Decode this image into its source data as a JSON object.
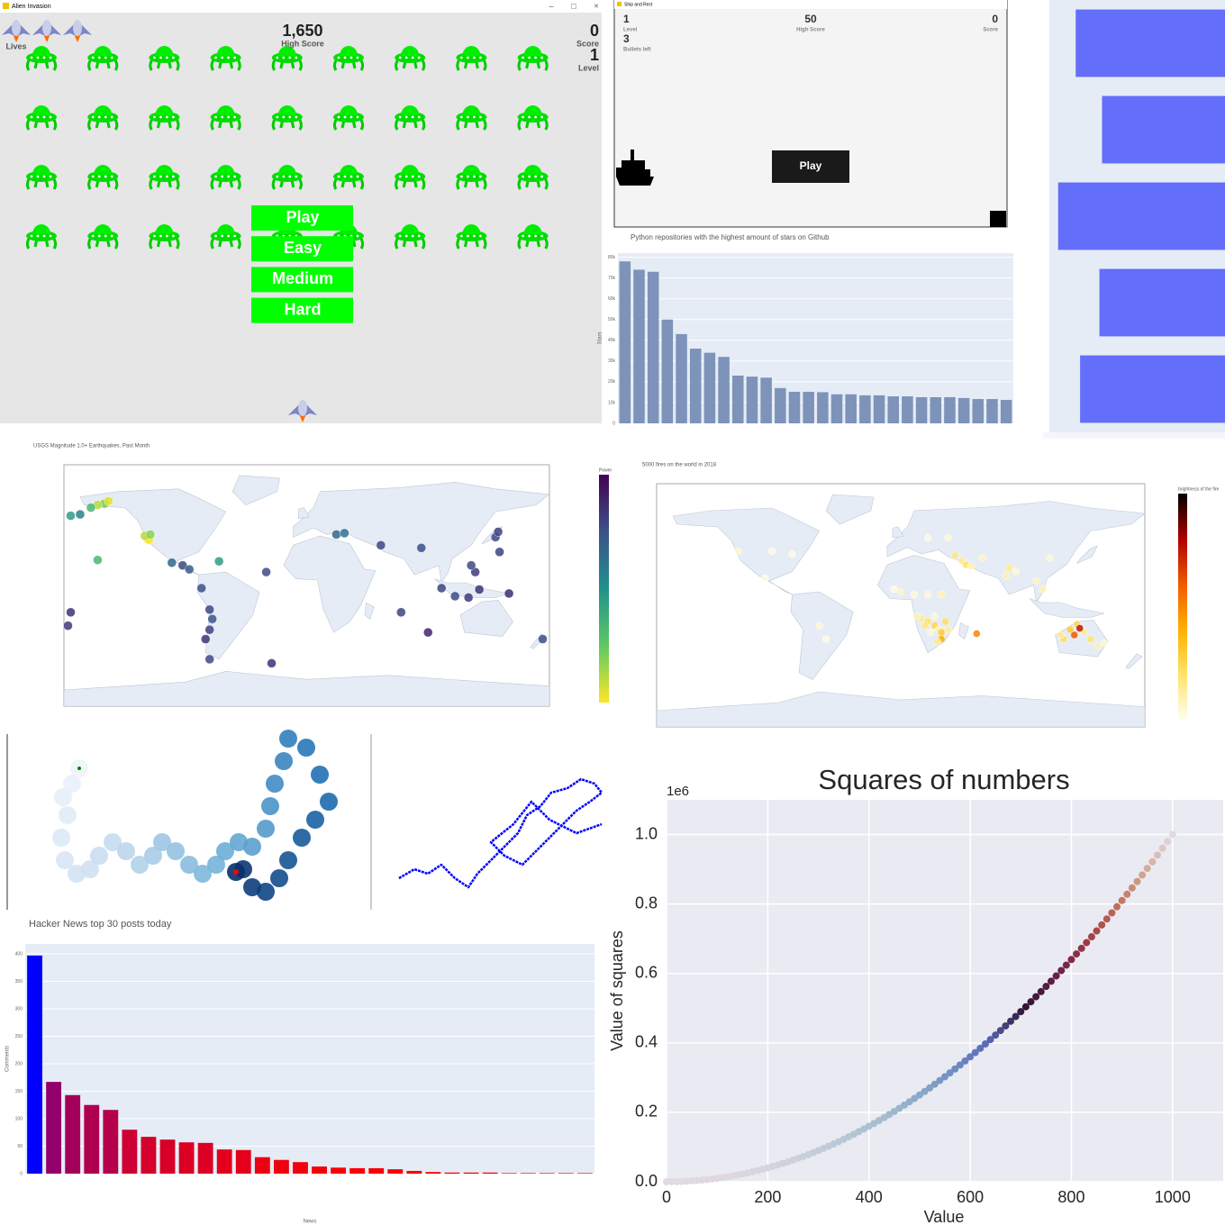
{
  "alien_invasion": {
    "window_title": "Alien Invasion",
    "lives_label": "Lives",
    "high_score": "1,650",
    "high_score_label": "High Score",
    "score": "0",
    "score_label": "Score",
    "level": "1",
    "level_label": "Level",
    "buttons": [
      "Play",
      "Easy",
      "Medium",
      "Hard"
    ]
  },
  "ship_and_rect": {
    "window_title": "Ship and Rect",
    "level": "1",
    "level_label": "Level",
    "bullets": "3",
    "bullets_label": "Bullets left",
    "high_score": "50",
    "high_score_label": "High Score",
    "score": "0",
    "score_label": "Score",
    "button": "Play"
  },
  "chart_data": [
    {
      "type": "bar",
      "title": "Python repositories with the highest amount of stars on Github",
      "y_label": "Stars",
      "color": "#7d93b9",
      "grid": true,
      "categories": [
        null,
        null,
        null,
        null,
        null,
        null,
        null,
        null,
        null,
        null,
        null,
        null,
        null,
        null,
        null,
        null,
        null,
        null,
        null,
        null,
        null,
        null,
        null,
        null,
        null,
        null,
        null,
        null
      ],
      "values": [
        78000,
        74000,
        73000,
        50000,
        43000,
        36000,
        34000,
        32000,
        23000,
        22500,
        22000,
        17000,
        15200,
        15200,
        15000,
        14000,
        14000,
        13500,
        13500,
        13000,
        13000,
        12600,
        12600,
        12600,
        12200,
        11700,
        11700,
        11300
      ],
      "ylim": [
        0,
        82000
      ],
      "yticks": [
        0,
        {
          "value": 10000,
          "label": "10k"
        },
        {
          "value": 20000,
          "label": "20k"
        },
        {
          "value": 30000,
          "label": "30k"
        },
        {
          "value": 40000,
          "label": "40k"
        },
        {
          "value": 50000,
          "label": "50k"
        },
        {
          "value": 60000,
          "label": "60k"
        },
        {
          "value": 70000,
          "label": "70k"
        },
        {
          "value": 80000,
          "label": "80k"
        }
      ]
    },
    {
      "type": "hbar",
      "color": "#636efa",
      "categories": [
        null,
        null,
        null,
        null,
        null
      ],
      "values": [
        170,
        140,
        190,
        143,
        165
      ],
      "xlim": [
        0,
        200
      ]
    },
    {
      "type": "scatter_geo",
      "title": "USGS Magnitude 1.0+ Earthquakes, Past Month",
      "colorbar_title": "Power",
      "colorscale": "viridis_r",
      "clim": [
        1,
        5.5
      ],
      "lon": [
        -150,
        -155,
        -160,
        -175,
        -168,
        -147,
        -118,
        -117,
        -120,
        -116,
        -100,
        -92,
        -87,
        -72,
        -70,
        -72,
        -78,
        -75,
        -65,
        -30,
        22,
        28,
        55,
        85,
        140,
        142,
        143,
        125,
        122,
        110,
        120,
        100,
        128,
        150,
        -175,
        -177,
        175,
        70,
        90,
        -155,
        -26,
        -72
      ],
      "lat": [
        61,
        60,
        58,
        52,
        53,
        63,
        35,
        34,
        37,
        38,
        17,
        15,
        12,
        -18,
        -25,
        -33,
        -2,
        -40,
        18,
        10,
        38,
        39,
        30,
        28,
        36,
        40,
        25,
        10,
        15,
        -8,
        -9,
        -2,
        -3,
        -6,
        -20,
        -30,
        -40,
        -20,
        -35,
        19,
        -58,
        -55
      ],
      "values": [
        2,
        1.5,
        2.5,
        3,
        3.5,
        1.2,
        1.2,
        1,
        1.5,
        1.8,
        4,
        4.5,
        4.2,
        4.5,
        4.3,
        4.6,
        4.4,
        4.8,
        3,
        4.5,
        4,
        3.8,
        4.5,
        4.4,
        4.5,
        4.6,
        4.6,
        4.7,
        4.5,
        4.5,
        4.7,
        4.6,
        4.8,
        4.9,
        4.8,
        4.7,
        4.4,
        4.6,
        5,
        2.5,
        4.8,
        4.5
      ]
    },
    {
      "type": "scatter_geo",
      "title": "5000 fires on the world in 2018",
      "colorbar_title": "brightness of the fire",
      "colorscale": "hot_r",
      "clim": [
        300,
        500
      ],
      "lon": [
        15,
        20,
        25,
        28,
        30,
        22,
        18,
        12,
        25,
        33,
        30,
        27,
        35,
        10,
        0,
        -5,
        20,
        30,
        56,
        45,
        48,
        52,
        40,
        60,
        78,
        80,
        85,
        100,
        105,
        110,
        125,
        130,
        135,
        140,
        120,
        128,
        145,
        150,
        132,
        118,
        -100,
        -60,
        -55,
        -120,
        -95,
        -80,
        20,
        35
      ],
      "lat": [
        -10,
        -12,
        -15,
        -18,
        -20,
        -20,
        -15,
        -8,
        -8,
        -12,
        -25,
        -27,
        -18,
        8,
        10,
        12,
        8,
        8,
        -21,
        33,
        30,
        29,
        37,
        35,
        22,
        28,
        25,
        18,
        12,
        35,
        -18,
        -14,
        -20,
        -25,
        -25,
        -22,
        -30,
        -28,
        -17,
        -22,
        20,
        -15,
        -25,
        40,
        40,
        38,
        50,
        50
      ],
      "values": [
        330,
        340,
        350,
        320,
        360,
        310,
        335,
        320,
        310,
        345,
        380,
        330,
        325,
        310,
        315,
        305,
        310,
        320,
        400,
        330,
        340,
        320,
        335,
        315,
        320,
        330,
        310,
        315,
        320,
        310,
        360,
        350,
        330,
        340,
        345,
        420,
        320,
        310,
        450,
        330,
        305,
        310,
        305,
        310,
        305,
        305,
        305,
        310
      ]
    },
    {
      "type": "scatter",
      "colorscale": "Blues",
      "xlim": [
        0,
        365
      ],
      "ylim": [
        0,
        195
      ],
      "x": [
        48,
        40,
        30,
        35,
        28,
        32,
        45,
        60,
        70,
        85,
        100,
        115,
        130,
        140,
        155,
        170,
        185,
        200,
        210,
        225,
        240,
        255,
        260,
        265,
        275,
        280,
        300,
        315,
        325,
        310,
        295,
        280,
        270,
        255,
        240,
        230,
        222
      ],
      "y": [
        157,
        140,
        125,
        105,
        80,
        55,
        40,
        45,
        60,
        75,
        65,
        50,
        60,
        75,
        65,
        50,
        40,
        50,
        65,
        75,
        70,
        90,
        115,
        140,
        165,
        190,
        180,
        150,
        120,
        100,
        80,
        55,
        35,
        20,
        25,
        45,
        42
      ]
    },
    {
      "type": "line",
      "color": "#0000ff",
      "xlim": [
        0,
        228
      ],
      "ylim": [
        0,
        145
      ],
      "x": [
        3,
        20,
        35,
        50,
        65,
        80,
        90,
        105,
        120,
        135,
        145,
        160,
        172,
        190,
        205,
        220,
        228,
        215,
        200,
        185,
        170,
        155,
        140,
        120,
        105,
        130,
        150,
        170,
        200,
        228
      ],
      "y": [
        25,
        35,
        30,
        40,
        25,
        15,
        30,
        45,
        60,
        75,
        95,
        105,
        120,
        125,
        135,
        130,
        120,
        110,
        100,
        85,
        70,
        55,
        40,
        50,
        65,
        85,
        110,
        90,
        75,
        85
      ]
    },
    {
      "type": "bar",
      "title": "Hacker News top 30 posts today",
      "y_label": "Comments",
      "x_label": "News",
      "colorscale": [
        "#ff0000",
        "#0000ff"
      ],
      "grid": true,
      "categories": [
        null,
        null,
        null,
        null,
        null,
        null,
        null,
        null,
        null,
        null,
        null,
        null,
        null,
        null,
        null,
        null,
        null,
        null,
        null,
        null,
        null,
        null,
        null,
        null,
        null,
        null,
        null,
        null,
        null,
        null
      ],
      "values": [
        397,
        167,
        143,
        125,
        116,
        80,
        67,
        62,
        57,
        56,
        44,
        43,
        30,
        25,
        21,
        13,
        11,
        10,
        10,
        8,
        5,
        3,
        2,
        2,
        2,
        1,
        1,
        1,
        1,
        1
      ],
      "ylim": [
        0,
        418
      ],
      "yticks": [
        0,
        50,
        100,
        150,
        200,
        250,
        300,
        350,
        400
      ]
    },
    {
      "type": "scatter",
      "title": "Squares of numbers",
      "x_label": "Value",
      "y_label": "Value of squares",
      "offset_label": "1e6",
      "colorscale": "twilight",
      "grid": true,
      "xlim": [
        0,
        1100
      ],
      "ylim": [
        0,
        1100000
      ],
      "xticks": [
        0,
        200,
        400,
        600,
        800,
        1000
      ],
      "yticks": [
        {
          "value": 0,
          "label": "0.0"
        },
        {
          "value": 200000,
          "label": "0.2"
        },
        {
          "value": 400000,
          "label": "0.4"
        },
        {
          "value": 600000,
          "label": "0.6"
        },
        {
          "value": 800000,
          "label": "0.8"
        },
        {
          "value": 1000000,
          "label": "1.0"
        }
      ],
      "x": [
        0,
        10,
        20,
        30,
        40,
        50,
        60,
        70,
        80,
        90,
        100,
        110,
        120,
        130,
        140,
        150,
        160,
        170,
        180,
        190,
        200,
        210,
        220,
        230,
        240,
        250,
        260,
        270,
        280,
        290,
        300,
        310,
        320,
        330,
        340,
        350,
        360,
        370,
        380,
        390,
        400,
        410,
        420,
        430,
        440,
        450,
        460,
        470,
        480,
        490,
        500,
        510,
        520,
        530,
        540,
        550,
        560,
        570,
        580,
        590,
        600,
        610,
        620,
        630,
        640,
        650,
        660,
        670,
        680,
        690,
        700,
        710,
        720,
        730,
        740,
        750,
        760,
        770,
        780,
        790,
        800,
        810,
        820,
        830,
        840,
        850,
        860,
        870,
        880,
        890,
        900,
        910,
        920,
        930,
        940,
        950,
        960,
        970,
        980,
        990,
        1000
      ],
      "y": [
        0,
        100,
        400,
        900,
        1600,
        2500,
        3600,
        4900,
        6400,
        8100,
        10000,
        12100,
        14400,
        16900,
        19600,
        22500,
        25600,
        28900,
        32400,
        36100,
        40000,
        44100,
        48400,
        52900,
        57600,
        62500,
        67600,
        72900,
        78400,
        84100,
        90000,
        96100,
        102400,
        108900,
        115600,
        122500,
        129600,
        136900,
        144400,
        152100,
        160000,
        168100,
        176400,
        184900,
        193600,
        202500,
        211600,
        220900,
        230400,
        240100,
        250000,
        260100,
        270400,
        280900,
        291600,
        302500,
        313600,
        324900,
        336400,
        348100,
        360000,
        372100,
        384400,
        396900,
        409600,
        422500,
        435600,
        448900,
        462400,
        476100,
        490000,
        504100,
        518400,
        532900,
        547600,
        562500,
        577600,
        592900,
        608400,
        624100,
        640000,
        656100,
        672400,
        688900,
        705600,
        722500,
        739600,
        756900,
        774400,
        792100,
        810000,
        828100,
        846400,
        864900,
        883600,
        902500,
        921600,
        940900,
        960400,
        980100,
        1000000
      ]
    }
  ]
}
